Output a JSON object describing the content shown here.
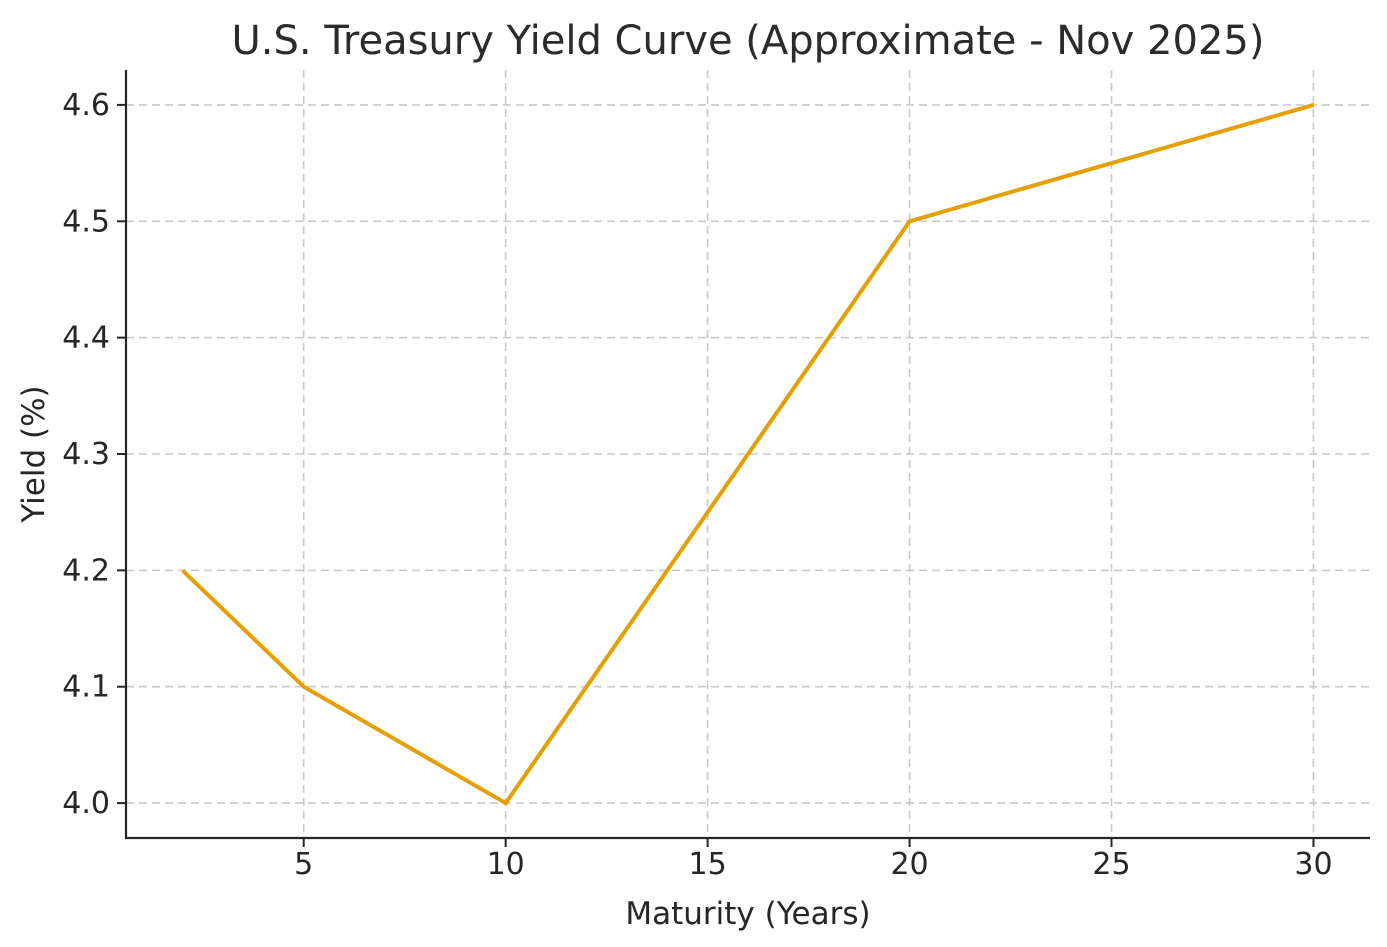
{
  "figure": {
    "background": "#ffffff"
  },
  "chart_data": {
    "type": "line",
    "title": "U.S. Treasury Yield Curve (Approximate - Nov 2025)",
    "xlabel": "Maturity (Years)",
    "ylabel": "Yield (%)",
    "x": [
      2,
      5,
      10,
      20,
      30
    ],
    "y": [
      4.2,
      4.1,
      4.0,
      4.5,
      4.6
    ],
    "xticks": [
      5,
      10,
      15,
      20,
      25,
      30
    ],
    "xtick_labels": [
      "5",
      "10",
      "15",
      "20",
      "25",
      "30"
    ],
    "yticks": [
      4.0,
      4.1,
      4.2,
      4.3,
      4.4,
      4.5,
      4.6
    ],
    "ytick_labels": [
      "4.0",
      "4.1",
      "4.2",
      "4.3",
      "4.4",
      "4.5",
      "4.6"
    ],
    "xlim": [
      0.6,
      31.4
    ],
    "ylim": [
      3.97,
      4.63
    ],
    "grid": true,
    "grid_style": "dashed",
    "legend": "none",
    "line_color": "#E69F00",
    "grid_color": "#c9c9c9",
    "axis_color": "#262626",
    "text_color": "#262626"
  }
}
